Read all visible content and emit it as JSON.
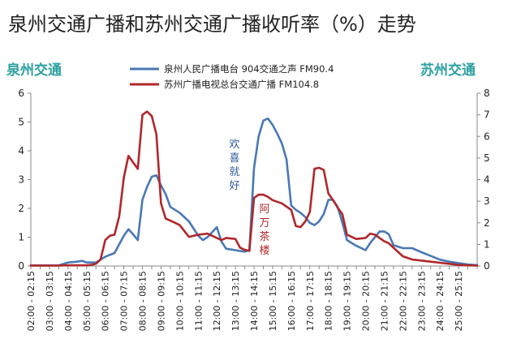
{
  "chart_data": {
    "type": "line",
    "title": "泉州交通广播和苏州交通广播收听率（%）走势",
    "left_axis_label": "泉州交通",
    "right_axis_label": "苏州交通",
    "grid": false,
    "legend_position": "top-center",
    "ylim_left": [
      0,
      6
    ],
    "ylim_right": [
      0,
      8
    ],
    "yticks_left": [
      "0",
      "1",
      "2",
      "3",
      "4",
      "5",
      "6"
    ],
    "yticks_right": [
      "0",
      "1",
      "2",
      "3",
      "4",
      "5",
      "6",
      "7",
      "8"
    ],
    "categories": [
      "02:00 - 02:15",
      "03:00 - 03:15",
      "04:00 - 04:15",
      "05:00 - 05:15",
      "06:00 - 06:15",
      "07:00 - 07:15",
      "08:00 - 08:15",
      "09:00 - 09:15",
      "10:00 - 10:15",
      "11:00 - 11:15",
      "12:00 - 12:15",
      "13:00 - 13:15",
      "14:00 - 14:15",
      "15:00 - 15:15",
      "16:00 - 16:15",
      "17:00 - 17:15",
      "18:00 - 18:15",
      "19:00 - 19:15",
      "20:00 - 20:15",
      "21:00 - 21:15",
      "22:00 - 22:15",
      "23:00 - 23:15",
      "24:00 - 24:15",
      "25:00 - 25:15"
    ],
    "x_start": 2.0,
    "x_end": 26.0,
    "series": [
      {
        "name": "泉州人民广播电台 904交通之声 FM90.4",
        "axis": "left",
        "color": "#4a78b5",
        "x": [
          2.0,
          2.5,
          3.0,
          3.5,
          4.0,
          4.5,
          4.75,
          5.0,
          5.5,
          6.0,
          6.5,
          7.0,
          7.25,
          7.5,
          7.75,
          8.0,
          8.25,
          8.5,
          8.75,
          9.0,
          9.25,
          9.5,
          10.0,
          10.5,
          11.0,
          11.25,
          11.5,
          12.0,
          12.25,
          12.5,
          13.0,
          13.25,
          13.5,
          13.75,
          14.0,
          14.25,
          14.5,
          14.75,
          15.0,
          15.25,
          15.5,
          15.75,
          16.0,
          16.25,
          16.5,
          16.75,
          17.0,
          17.25,
          17.5,
          17.75,
          18.0,
          18.25,
          18.5,
          18.75,
          19.0,
          19.5,
          20.0,
          20.25,
          20.5,
          20.75,
          21.0,
          21.25,
          21.5,
          22.0,
          22.5,
          23.0,
          23.5,
          24.0,
          24.5,
          25.0,
          25.5,
          26.0
        ],
        "values": [
          0.02,
          0.02,
          0.02,
          0.02,
          0.12,
          0.15,
          0.18,
          0.12,
          0.12,
          0.32,
          0.45,
          1.05,
          1.28,
          1.1,
          0.9,
          2.3,
          2.75,
          3.1,
          3.15,
          2.8,
          2.5,
          2.05,
          1.85,
          1.55,
          1.05,
          0.9,
          1.0,
          1.35,
          0.85,
          0.6,
          0.55,
          0.52,
          0.5,
          0.55,
          3.4,
          4.5,
          5.05,
          5.12,
          4.9,
          4.6,
          4.25,
          3.7,
          2.1,
          1.95,
          1.85,
          1.7,
          1.5,
          1.42,
          1.55,
          1.8,
          2.3,
          2.3,
          2.05,
          1.5,
          0.9,
          0.7,
          0.55,
          0.8,
          1.0,
          1.2,
          1.2,
          1.1,
          0.72,
          0.62,
          0.62,
          0.48,
          0.35,
          0.22,
          0.15,
          0.1,
          0.05,
          0.03
        ]
      },
      {
        "name": "苏州广播电视总台交通广播 FM104.8",
        "axis": "right",
        "color": "#b0272a",
        "x": [
          2.0,
          2.5,
          3.0,
          3.5,
          4.0,
          4.5,
          5.0,
          5.25,
          5.5,
          5.75,
          6.0,
          6.25,
          6.5,
          6.75,
          7.0,
          7.25,
          7.5,
          7.75,
          8.0,
          8.25,
          8.5,
          8.75,
          9.0,
          9.25,
          9.5,
          10.0,
          10.5,
          11.0,
          11.5,
          12.0,
          12.25,
          12.5,
          13.0,
          13.25,
          13.5,
          13.75,
          14.0,
          14.25,
          14.5,
          14.75,
          15.0,
          15.5,
          16.0,
          16.25,
          16.5,
          16.75,
          17.0,
          17.25,
          17.5,
          17.75,
          18.0,
          18.25,
          18.5,
          18.75,
          19.0,
          19.5,
          20.0,
          20.25,
          20.5,
          20.75,
          21.0,
          21.25,
          21.5,
          22.0,
          22.5,
          23.0,
          23.5,
          24.0,
          24.5,
          25.0,
          25.5,
          26.0
        ],
        "values": [
          0.02,
          0.02,
          0.02,
          0.02,
          0.03,
          0.03,
          0.03,
          0.05,
          0.1,
          0.3,
          1.2,
          1.4,
          1.45,
          2.3,
          4.1,
          5.1,
          4.8,
          4.5,
          7.0,
          7.15,
          6.95,
          6.1,
          2.9,
          2.2,
          2.1,
          1.9,
          1.35,
          1.45,
          1.5,
          1.3,
          1.2,
          1.3,
          1.25,
          0.85,
          0.75,
          0.7,
          3.15,
          3.3,
          3.3,
          3.2,
          3.05,
          2.9,
          2.6,
          1.85,
          1.8,
          2.05,
          2.5,
          4.5,
          4.55,
          4.45,
          3.35,
          3.05,
          2.7,
          2.4,
          1.45,
          1.25,
          1.3,
          1.5,
          1.45,
          1.3,
          1.15,
          1.05,
          0.85,
          0.45,
          0.3,
          0.25,
          0.2,
          0.15,
          0.1,
          0.05,
          0.03,
          0.02
        ]
      }
    ],
    "annotations": [
      {
        "text": "欢喜就好",
        "color": "#2f5b9a"
      },
      {
        "text": "阿万茶楼",
        "color": "#b0272a"
      }
    ]
  }
}
